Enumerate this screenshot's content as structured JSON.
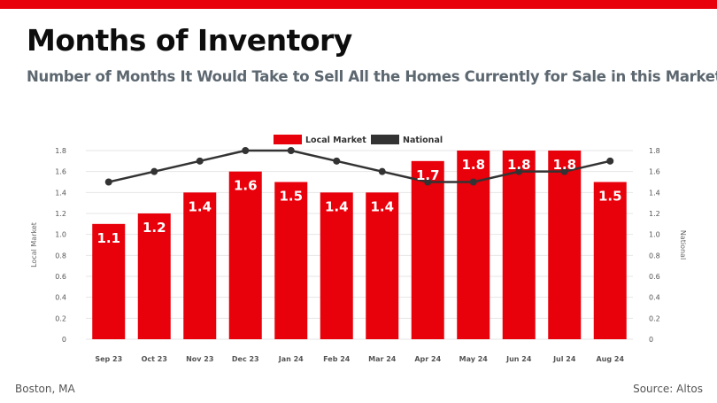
{
  "header": {
    "title": "Months of Inventory",
    "subtitle": "Number of Months It Would Take to Sell All the Homes Currently for Sale in this Market"
  },
  "footer": {
    "location": "Boston, MA",
    "source": "Source: Altos"
  },
  "colors": {
    "accent": "#e8000b",
    "national_line": "#333333",
    "subtitle": "#5c6770",
    "grid": "#e6e6e6"
  },
  "chart_data": {
    "type": "bar",
    "categories": [
      "Sep 23",
      "Oct 23",
      "Nov 23",
      "Dec 23",
      "Jan 24",
      "Feb 24",
      "Mar 24",
      "Apr 24",
      "May 24",
      "Jun 24",
      "Jul 24",
      "Aug 24"
    ],
    "series": [
      {
        "name": "Local Market",
        "type": "bar",
        "axis": "left",
        "values": [
          1.1,
          1.2,
          1.4,
          1.6,
          1.5,
          1.4,
          1.4,
          1.7,
          1.8,
          1.8,
          1.8,
          1.5
        ],
        "color": "#e8000b"
      },
      {
        "name": "National",
        "type": "line",
        "axis": "right",
        "values": [
          1.5,
          1.6,
          1.7,
          1.8,
          1.8,
          1.7,
          1.6,
          1.5,
          1.5,
          1.6,
          1.6,
          1.7
        ],
        "color": "#333333"
      }
    ],
    "ylabel": "Local Market",
    "y2label": "National",
    "ylim": [
      0,
      1.8
    ],
    "y2lim": [
      0,
      1.8
    ],
    "yticks": [
      "0",
      "0.2",
      "0.4",
      "0.6",
      "0.8",
      "1.0",
      "1.2",
      "1.4",
      "1.6",
      "1.8"
    ],
    "y2ticks": [
      "0",
      "0.2",
      "0.4",
      "0.6",
      "0.8",
      "1.0",
      "1.2",
      "1.4",
      "1.6",
      "1.8"
    ],
    "data_labels": [
      "1.1",
      "1.2",
      "1.4",
      "1.6",
      "1.5",
      "1.4",
      "1.4",
      "1.7",
      "1.8",
      "1.8",
      "1.8",
      "1.5"
    ],
    "grid": true,
    "legend": "top-center"
  }
}
